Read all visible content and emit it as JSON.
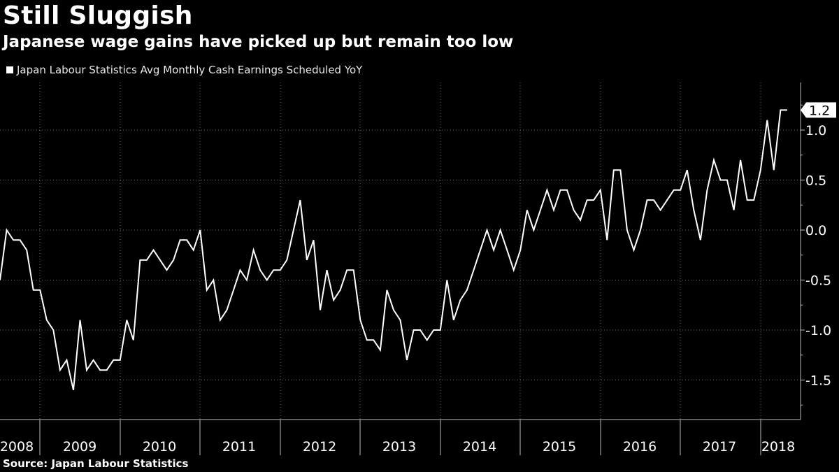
{
  "title": "Still Sluggish",
  "subtitle": "Japanese wage gains have picked up but remain too low",
  "source": "Source: Japan Labour Statistics",
  "chart_data": {
    "type": "line",
    "legend": [
      "Japan Labour Statistics Avg Monthly Cash Earnings Scheduled YoY"
    ],
    "series": [
      {
        "name": "Japan Labour Statistics Avg Monthly Cash Earnings Scheduled YoY",
        "color": "#ffffff",
        "start": "2008-01",
        "values": [
          -0.5,
          0.0,
          -0.1,
          -0.1,
          -0.2,
          -0.6,
          -0.6,
          -0.9,
          -1.0,
          -1.4,
          -1.3,
          -1.6,
          -0.9,
          -1.4,
          -1.3,
          -1.4,
          -1.4,
          -1.3,
          -1.3,
          -0.9,
          -1.1,
          -0.3,
          -0.3,
          -0.2,
          -0.3,
          -0.4,
          -0.3,
          -0.1,
          -0.1,
          -0.2,
          0.0,
          -0.6,
          -0.5,
          -0.9,
          -0.8,
          -0.6,
          -0.4,
          -0.5,
          -0.2,
          -0.4,
          -0.5,
          -0.4,
          -0.4,
          -0.3,
          0.0,
          0.3,
          -0.3,
          -0.1,
          -0.8,
          -0.4,
          -0.7,
          -0.6,
          -0.4,
          -0.4,
          -0.9,
          -1.1,
          -1.1,
          -1.2,
          -0.6,
          -0.8,
          -0.9,
          -1.3,
          -1.0,
          -1.0,
          -1.1,
          -1.0,
          -1.0,
          -0.5,
          -0.9,
          -0.7,
          -0.6,
          -0.4,
          -0.2,
          0.0,
          -0.2,
          0.0,
          -0.2,
          -0.4,
          -0.2,
          0.2,
          0.0,
          0.2,
          0.4,
          0.2,
          0.4,
          0.4,
          0.2,
          0.1,
          0.3,
          0.3,
          0.4,
          -0.1,
          0.6,
          0.6,
          0.0,
          -0.2,
          0.0,
          0.3,
          0.3,
          0.2,
          0.3,
          0.4,
          0.4,
          0.6,
          0.2,
          -0.1,
          0.4,
          0.7,
          0.5,
          0.5,
          0.2,
          0.7,
          0.3,
          0.3,
          0.6,
          1.1,
          0.6,
          1.2,
          1.2
        ]
      }
    ],
    "last_value_label": "1.2",
    "x_tick_labels": [
      "2008",
      "2009",
      "2010",
      "2011",
      "2012",
      "2013",
      "2014",
      "2015",
      "2016",
      "2017",
      "2018"
    ],
    "y_ticks": [
      1.0,
      0.5,
      0.0,
      -0.5,
      -1.0,
      -1.5
    ],
    "y_tick_labels": [
      "1.0",
      "0.5",
      "0.0",
      "-0.5",
      "-1.0",
      "-1.5"
    ],
    "ylim": [
      -1.9,
      1.5
    ],
    "x_axis_grid": true,
    "y_axis_grid": true,
    "axis_position": "right"
  }
}
